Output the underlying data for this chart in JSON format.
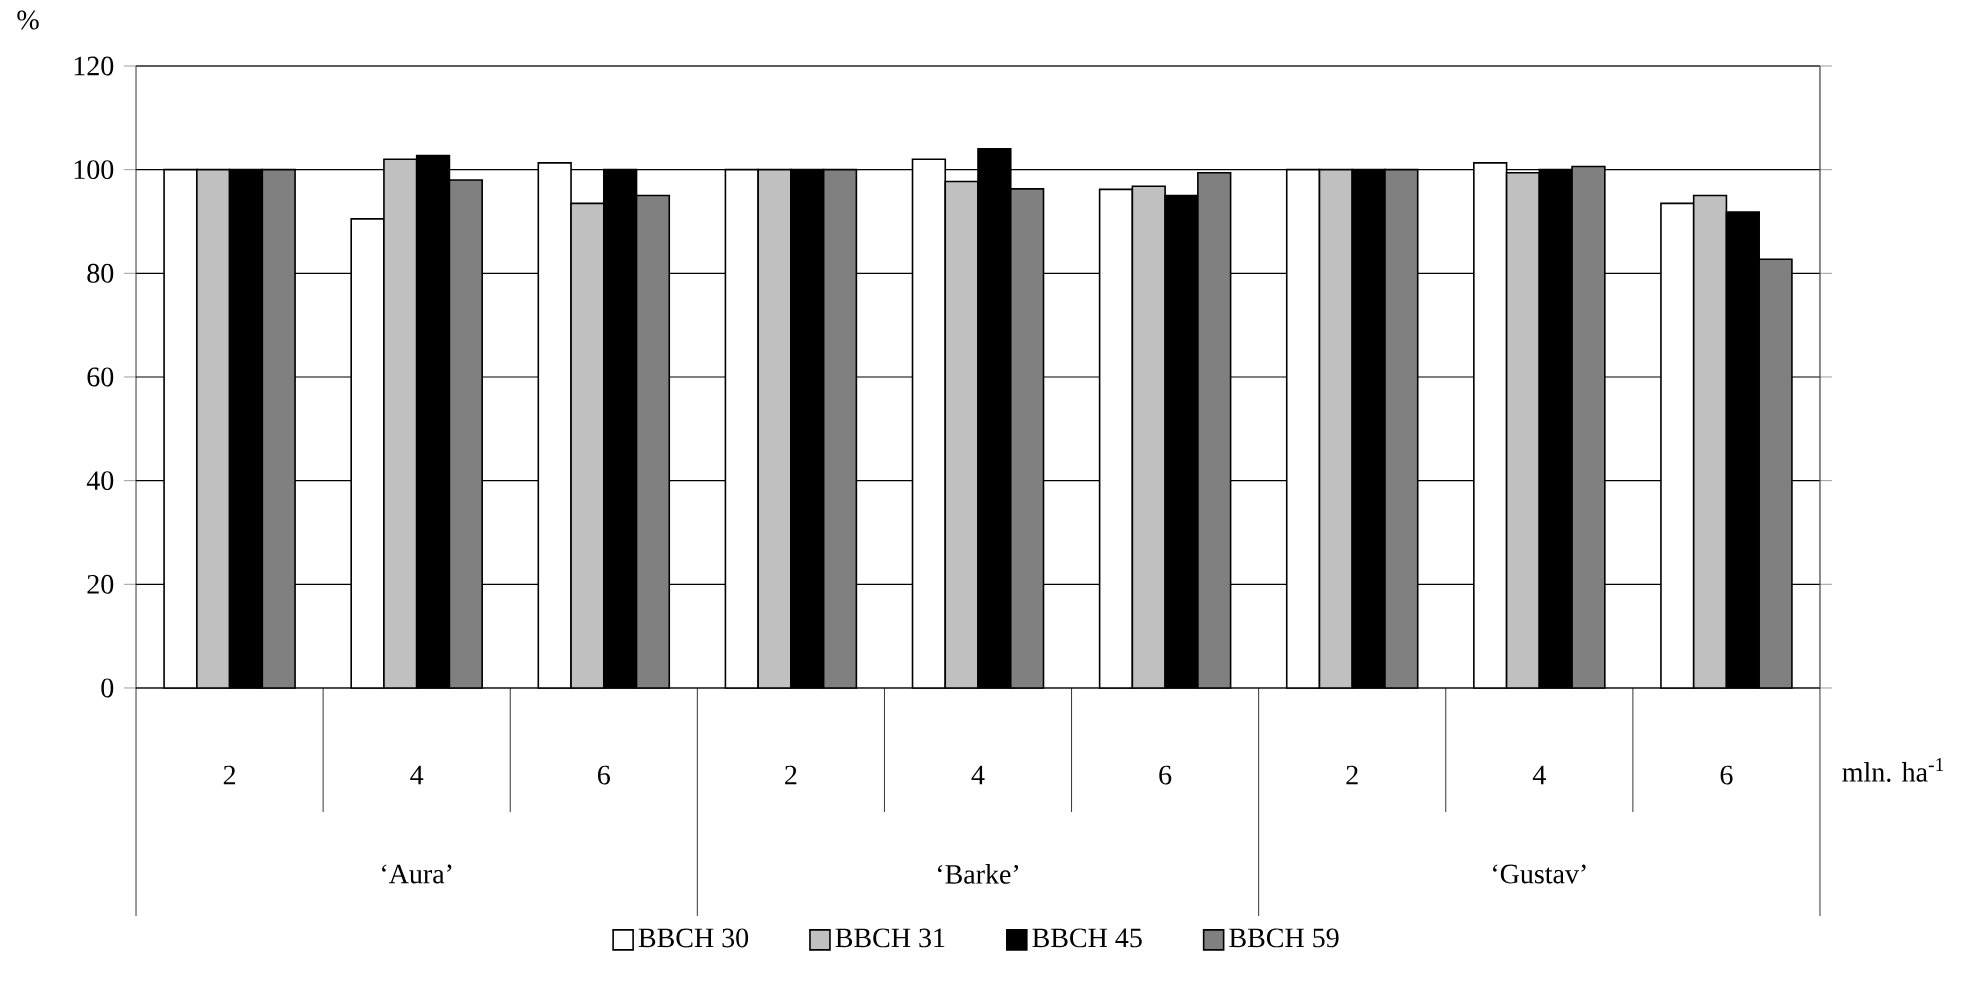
{
  "chart_data": {
    "type": "bar",
    "ylabel": "%",
    "xlabel": "mln. ha$^{-1}$",
    "categories": [
      "2",
      "4",
      "6",
      "2",
      "4",
      "6",
      "2",
      "4",
      "6"
    ],
    "annotations": [
      "‘Aura’",
      "‘Barke’",
      "‘Gustav’"
    ],
    "series": [
      {
        "name": "BBCH 30",
        "color": "#ffffff",
        "values": [
          100,
          90.5,
          101.3,
          100,
          102,
          96.2,
          100,
          101.3,
          93.5
        ]
      },
      {
        "name": "BBCH 31",
        "color": "#c0c0c0",
        "values": [
          100,
          102,
          93.5,
          100,
          97.7,
          96.8,
          100,
          99.4,
          95
        ]
      },
      {
        "name": "BBCH 45",
        "color": "#000000",
        "values": [
          100,
          102.7,
          100,
          100,
          104,
          95,
          100,
          100,
          91.8
        ]
      },
      {
        "name": "BBCH 59",
        "color": "#808080",
        "values": [
          100,
          98,
          95,
          100,
          96.3,
          99.4,
          100,
          100.6,
          82.7
        ]
      }
    ],
    "ylim": [
      0,
      120
    ],
    "yticks": [
      0,
      20,
      40,
      60,
      80,
      100,
      120
    ],
    "grid": "y",
    "legend": "bottom"
  }
}
